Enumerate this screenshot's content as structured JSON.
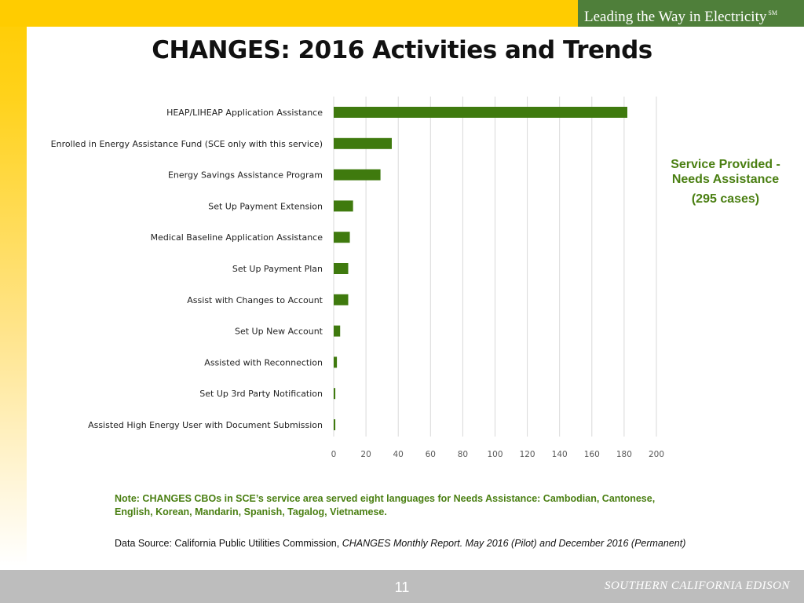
{
  "header": {
    "tagline": "Leading the Way in Electricity",
    "tagline_mark": "SM"
  },
  "slide": {
    "title": "CHANGES: 2016 Activities and Trends",
    "legend_line1": "Service Provided -",
    "legend_line2": "Needs Assistance",
    "legend_cases": "(295 cases)",
    "note": "Note: CHANGES CBOs in SCE’s service area served eight languages for Needs Assistance: Cambodian, Cantonese, English, Korean, Mandarin, Spanish, Tagalog, Vietnamese.",
    "source_prefix": "Data Source: California Public Utilities Commission, ",
    "source_italic": "CHANGES Monthly Report. May 2016 (Pilot) and December 2016 (Permanent)"
  },
  "footer": {
    "page_number": "11",
    "company": "SOUTHERN CALIFORNIA EDISON"
  },
  "colors": {
    "bar": "#3f7a0e",
    "accent_green": "#4a7f12",
    "brand_yellow": "#ffcc00"
  },
  "chart_data": {
    "type": "bar",
    "orientation": "horizontal",
    "categories": [
      "HEAP/LIHEAP Application Assistance",
      "Enrolled in Energy Assistance Fund (SCE only with this service)",
      "Energy Savings Assistance Program",
      "Set Up Payment Extension",
      "Medical Baseline Application Assistance",
      "Set Up Payment Plan",
      "Assist with Changes to Account",
      "Set Up New Account",
      "Assisted with Reconnection",
      "Set Up 3rd Party Notification",
      "Assisted High Energy User with Document Submission"
    ],
    "values": [
      182,
      36,
      29,
      12,
      10,
      9,
      9,
      4,
      2,
      1,
      1
    ],
    "xlim": [
      0,
      200
    ],
    "xticks": [
      0,
      20,
      40,
      60,
      80,
      100,
      120,
      140,
      160,
      180,
      200
    ],
    "grid": true,
    "legend": "right"
  }
}
